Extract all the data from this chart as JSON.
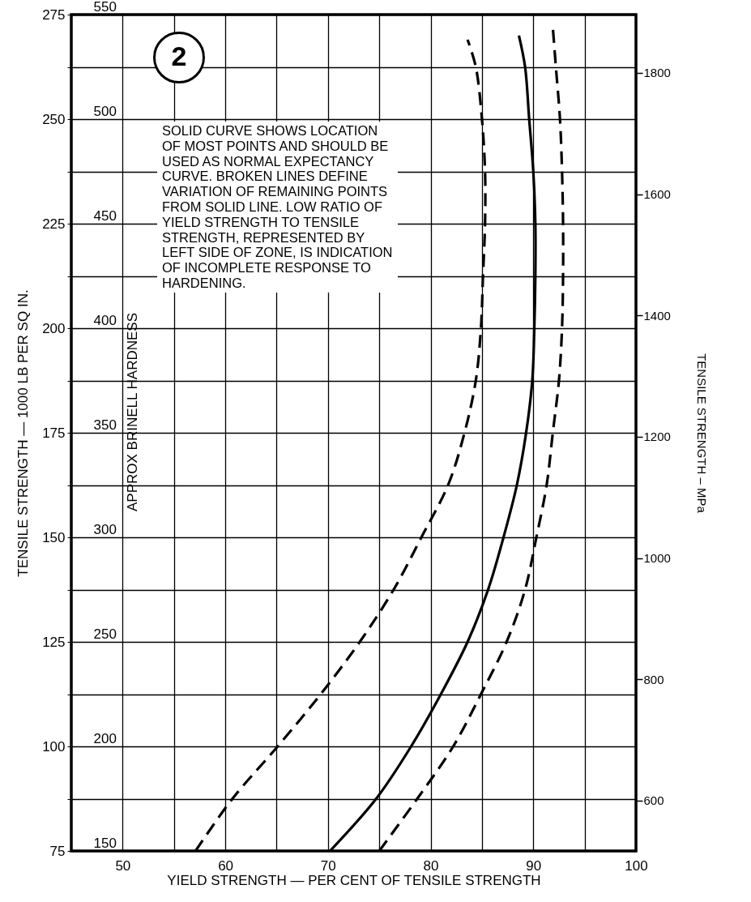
{
  "chart_data": {
    "type": "line",
    "xlabel": "YIELD STRENGTH — PER CENT OF TENSILE STRENGTH",
    "ylabel": "TENSILE STRENGTH — 1000 LB PER SQ IN.",
    "y2label": "TENSILE STRENGTH – MPa",
    "y3label": "APPROX BRINELL HARDNESS",
    "annotations": [
      "2",
      "SOLID CURVE SHOWS LOCATION\nOF MOST POINTS AND SHOULD BE\nUSED AS NORMAL EXPECTANCY\nCURVE. BROKEN LINES DEFINE\nVARIATION OF REMAINING POINTS\nFROM SOLID LINE. LOW RATIO OF\nYIELD STRENGTH TO TENSILE\nSTRENGTH, REPRESENTED BY\nLEFT SIDE OF ZONE, IS INDICATION\nOF INCOMPLETE RESPONSE TO\nHARDENING."
    ],
    "series": [
      {
        "color": "#000000",
        "line_style": "dashed",
        "x": [
          57.1,
          60.7,
          65.1,
          69.3,
          73.1,
          76.4,
          79.1,
          81.7,
          83.3,
          84.4,
          84.9,
          85.1,
          85.3,
          85.3,
          85.0,
          84.4,
          83.6
        ],
        "values": [
          75,
          87.5,
          100,
          112.5,
          125,
          137.5,
          150,
          162.5,
          175,
          187.5,
          200,
          212.5,
          225,
          237.5,
          250,
          262.5,
          269
        ]
      },
      {
        "color": "#000000",
        "line_style": "solid",
        "x": [
          70.2,
          74.7,
          78.1,
          81.0,
          83.6,
          85.6,
          87.1,
          88.4,
          89.3,
          89.9,
          90.1,
          90.2,
          90.2,
          90.0,
          89.6,
          89.2,
          88.6
        ],
        "values": [
          75,
          87.5,
          100,
          112.5,
          125,
          137.5,
          150,
          162.5,
          175,
          187.5,
          200,
          212.5,
          225,
          237.5,
          250,
          262.5,
          270
        ]
      },
      {
        "color": "#000000",
        "line_style": "dashed",
        "x": [
          75.0,
          78.7,
          82.2,
          84.9,
          87.4,
          89.2,
          90.3,
          91.3,
          91.9,
          92.5,
          92.8,
          92.9,
          92.9,
          92.8,
          92.6,
          92.2,
          91.9
        ],
        "values": [
          75,
          87.5,
          100,
          112.5,
          125,
          137.5,
          150,
          162.5,
          175,
          187.5,
          200,
          212.5,
          225,
          237.5,
          250,
          262.5,
          272
        ]
      }
    ],
    "xlim": [
      45,
      100
    ],
    "xticks": [
      50,
      {
        "value": 55,
        "label": null
      },
      60,
      {
        "value": 65,
        "label": null
      },
      70,
      {
        "value": 75,
        "label": null
      },
      80,
      {
        "value": 85,
        "label": null
      },
      90,
      {
        "value": 95,
        "label": null
      },
      100
    ],
    "ylim": [
      75,
      275
    ],
    "yticks": [
      75,
      {
        "value": 87.5,
        "label": null
      },
      100,
      {
        "value": 112.5,
        "label": null
      },
      125,
      {
        "value": 137.5,
        "label": null
      },
      150,
      {
        "value": 162.5,
        "label": null
      },
      175,
      {
        "value": 187.5,
        "label": null
      },
      200,
      {
        "value": 212.5,
        "label": null
      },
      225,
      {
        "value": 237.5,
        "label": null
      },
      250,
      {
        "value": 262.5,
        "label": null
      },
      275
    ],
    "y2lim": [
      517,
      1896
    ],
    "y2ticks": [
      600,
      800,
      1000,
      1200,
      1400,
      1600,
      1800
    ],
    "y3lim": [
      150,
      550
    ],
    "y3ticks": [
      150,
      200,
      250,
      300,
      350,
      400,
      450,
      500,
      550
    ],
    "grid": true
  }
}
